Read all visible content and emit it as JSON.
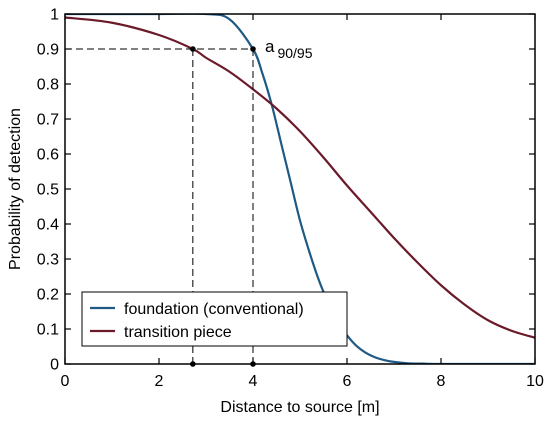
{
  "chart_data": {
    "type": "line",
    "xlabel": "Distance to source [m]",
    "ylabel": "Probability of detection",
    "xlim": [
      0,
      10
    ],
    "ylim": [
      0,
      1
    ],
    "x_ticks": [
      "0",
      "2",
      "4",
      "6",
      "8",
      "10"
    ],
    "y_ticks": [
      "0",
      "0.1",
      "0.2",
      "0.3",
      "0.4",
      "0.5",
      "0.6",
      "0.7",
      "0.8",
      "0.9",
      "1"
    ],
    "grid": false,
    "legend_position": "bottom-left",
    "series": [
      {
        "name": "foundation (conventional)",
        "color": "#1f5a85",
        "x": [
          0,
          1,
          2,
          3,
          3.5,
          4,
          4.2,
          4.4,
          4.6,
          4.8,
          5.0,
          5.2,
          5.4,
          5.6,
          5.8,
          6.0,
          6.2,
          6.4,
          6.6,
          6.8,
          7.0,
          7.3,
          7.6,
          8.0,
          10
        ],
        "y": [
          1.0,
          1.0,
          1.0,
          1.0,
          0.985,
          0.9,
          0.83,
          0.74,
          0.63,
          0.52,
          0.41,
          0.32,
          0.24,
          0.175,
          0.12,
          0.082,
          0.052,
          0.032,
          0.019,
          0.011,
          0.006,
          0.002,
          0.001,
          0.0,
          0.0
        ]
      },
      {
        "name": "transition piece",
        "color": "#6b1a2a",
        "x": [
          0,
          1,
          2,
          2.72,
          3,
          3.5,
          4,
          4.5,
          5,
          5.5,
          6,
          6.5,
          7,
          7.5,
          8,
          8.5,
          9,
          9.5,
          10
        ],
        "y": [
          0.99,
          0.975,
          0.94,
          0.9,
          0.875,
          0.835,
          0.785,
          0.73,
          0.665,
          0.59,
          0.51,
          0.435,
          0.36,
          0.29,
          0.225,
          0.17,
          0.125,
          0.095,
          0.075
        ]
      }
    ],
    "annotations": {
      "a9095": {
        "base": "a",
        "subscript": "90/95",
        "y_level": 0.9,
        "x_marks": [
          2.72,
          4.0
        ]
      }
    }
  }
}
